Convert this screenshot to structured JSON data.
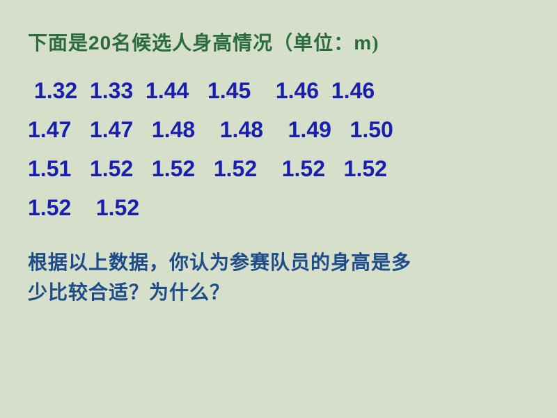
{
  "slide": {
    "title_prefix": "下面是",
    "title_count": "20",
    "title_mid": "名候选人身高情况（单位：",
    "title_unit": "m",
    "title_suffix": ")",
    "data_rows": [
      " 1.32  1.33  1.44   1.45    1.46  1.46",
      "1.47   1.47   1.48    1.48    1.49   1.50",
      "1.51   1.52   1.52   1.52    1.52   1.52",
      "1.52    1.52"
    ],
    "question_line1": "根据以上数据，你认为参赛队员的身高是多",
    "question_line2": "少比较合适？为什么？"
  },
  "colors": {
    "background": "#d6dfc9",
    "title_color": "#2a6b3f",
    "data_color": "#1a1fb0",
    "question_color": "#1e4b8a"
  },
  "typography": {
    "title_fontsize": 28,
    "data_fontsize": 32,
    "question_fontsize": 28
  }
}
